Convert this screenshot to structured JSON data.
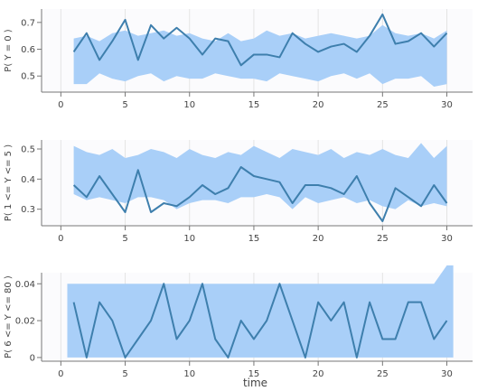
{
  "chart_data": [
    {
      "type": "line",
      "ylabel": "P( Y = 0 )",
      "xlabel": "",
      "xlim": [
        -1.5,
        32
      ],
      "ylim": [
        0.44,
        0.75
      ],
      "xticks": [
        0,
        5,
        10,
        15,
        20,
        25,
        30
      ],
      "yticks": [
        0.5,
        0.6,
        0.7
      ],
      "ytick_labels": [
        "0.5",
        "0.6",
        "0.7"
      ],
      "grid": "vertical",
      "x": [
        1,
        2,
        3,
        4,
        5,
        6,
        7,
        8,
        9,
        10,
        11,
        12,
        13,
        14,
        15,
        16,
        17,
        18,
        19,
        20,
        21,
        22,
        23,
        24,
        25,
        26,
        27,
        28,
        29,
        30
      ],
      "band_upper": [
        0.64,
        0.65,
        0.63,
        0.66,
        0.67,
        0.65,
        0.66,
        0.67,
        0.65,
        0.66,
        0.64,
        0.63,
        0.66,
        0.63,
        0.64,
        0.67,
        0.65,
        0.66,
        0.64,
        0.65,
        0.66,
        0.65,
        0.64,
        0.65,
        0.69,
        0.66,
        0.65,
        0.66,
        0.64,
        0.67
      ],
      "band_lower": [
        0.47,
        0.47,
        0.51,
        0.49,
        0.48,
        0.5,
        0.51,
        0.48,
        0.5,
        0.49,
        0.49,
        0.51,
        0.5,
        0.49,
        0.49,
        0.48,
        0.51,
        0.5,
        0.49,
        0.48,
        0.5,
        0.51,
        0.49,
        0.51,
        0.47,
        0.49,
        0.49,
        0.5,
        0.46,
        0.47
      ],
      "series": [
        {
          "values": [
            0.59,
            0.66,
            0.56,
            0.63,
            0.71,
            0.56,
            0.69,
            0.64,
            0.68,
            0.64,
            0.58,
            0.64,
            0.63,
            0.54,
            0.58,
            0.58,
            0.57,
            0.66,
            0.62,
            0.59,
            0.61,
            0.62,
            0.59,
            0.65,
            0.73,
            0.62,
            0.63,
            0.66,
            0.61,
            0.66
          ]
        }
      ]
    },
    {
      "type": "line",
      "ylabel": "P( 1 <= Y <= 5 )",
      "xlabel": "",
      "xlim": [
        -1.5,
        32
      ],
      "ylim": [
        0.245,
        0.53
      ],
      "xticks": [
        0,
        5,
        10,
        15,
        20,
        25,
        30
      ],
      "yticks": [
        0.3,
        0.4,
        0.5
      ],
      "ytick_labels": [
        "0.3",
        "0.4",
        "0.5"
      ],
      "grid": "vertical",
      "x": [
        1,
        2,
        3,
        4,
        5,
        6,
        7,
        8,
        9,
        10,
        11,
        12,
        13,
        14,
        15,
        16,
        17,
        18,
        19,
        20,
        21,
        22,
        23,
        24,
        25,
        26,
        27,
        28,
        29,
        30
      ],
      "band_upper": [
        0.51,
        0.49,
        0.48,
        0.5,
        0.47,
        0.48,
        0.5,
        0.49,
        0.47,
        0.5,
        0.48,
        0.47,
        0.49,
        0.48,
        0.51,
        0.49,
        0.47,
        0.5,
        0.49,
        0.48,
        0.5,
        0.47,
        0.49,
        0.48,
        0.5,
        0.48,
        0.47,
        0.52,
        0.47,
        0.51
      ],
      "band_lower": [
        0.35,
        0.33,
        0.34,
        0.33,
        0.32,
        0.34,
        0.34,
        0.33,
        0.3,
        0.32,
        0.33,
        0.33,
        0.32,
        0.34,
        0.34,
        0.35,
        0.34,
        0.3,
        0.34,
        0.32,
        0.33,
        0.34,
        0.32,
        0.33,
        0.31,
        0.3,
        0.33,
        0.31,
        0.32,
        0.31
      ],
      "series": [
        {
          "values": [
            0.38,
            0.34,
            0.41,
            0.35,
            0.29,
            0.43,
            0.29,
            0.32,
            0.31,
            0.34,
            0.38,
            0.35,
            0.37,
            0.44,
            0.41,
            0.4,
            0.39,
            0.32,
            0.38,
            0.38,
            0.37,
            0.35,
            0.41,
            0.32,
            0.26,
            0.37,
            0.34,
            0.31,
            0.38,
            0.32
          ]
        }
      ]
    },
    {
      "type": "line",
      "ylabel": "P( 6 <= Y <= 80 )",
      "xlabel": "time",
      "xlim": [
        -1.5,
        32
      ],
      "ylim": [
        -0.002,
        0.046
      ],
      "xticks": [
        0,
        5,
        10,
        15,
        20,
        25,
        30
      ],
      "xtick_labels": [
        "0",
        "5",
        "10",
        "15",
        "20",
        "25",
        "30"
      ],
      "yticks": [
        0,
        0.02,
        0.04
      ],
      "ytick_labels": [
        "0",
        "0.02",
        "0.04"
      ],
      "grid": "vertical",
      "x": [
        0.5,
        1,
        2,
        3,
        4,
        5,
        6,
        7,
        8,
        9,
        10,
        11,
        12,
        13,
        14,
        15,
        16,
        17,
        18,
        19,
        20,
        21,
        22,
        23,
        24,
        25,
        26,
        27,
        28,
        29,
        30,
        30.5
      ],
      "band_upper": [
        0.04,
        0.04,
        0.04,
        0.04,
        0.04,
        0.04,
        0.04,
        0.04,
        0.04,
        0.04,
        0.04,
        0.04,
        0.04,
        0.04,
        0.04,
        0.04,
        0.04,
        0.04,
        0.04,
        0.04,
        0.04,
        0.04,
        0.04,
        0.04,
        0.04,
        0.04,
        0.04,
        0.04,
        0.04,
        0.04,
        0.05,
        0.05
      ],
      "band_lower": [
        0,
        0,
        0,
        0,
        0,
        0,
        0,
        0,
        0,
        0,
        0,
        0,
        0,
        0,
        0,
        0,
        0,
        0,
        0,
        0,
        0,
        0,
        0,
        0,
        0,
        0,
        0,
        0,
        0,
        0,
        0,
        0
      ],
      "series": [
        {
          "x": [
            1,
            2,
            3,
            4,
            5,
            6,
            7,
            8,
            9,
            10,
            11,
            12,
            13,
            14,
            15,
            16,
            17,
            18,
            19,
            20,
            21,
            22,
            23,
            24,
            25,
            26,
            27,
            28,
            29,
            30
          ],
          "values": [
            0.03,
            0.0,
            0.03,
            0.02,
            0.0,
            0.01,
            0.02,
            0.04,
            0.01,
            0.02,
            0.04,
            0.01,
            0.0,
            0.02,
            0.01,
            0.02,
            0.04,
            0.02,
            0.0,
            0.03,
            0.02,
            0.03,
            0.0,
            0.03,
            0.01,
            0.01,
            0.03,
            0.03,
            0.01,
            0.02
          ]
        }
      ]
    }
  ],
  "colors": {
    "band": "#a9cff8",
    "line": "#3e7fad",
    "grid": "#e4e4e4",
    "plot_bg": "#fbfbfd",
    "axis": "#777777"
  }
}
